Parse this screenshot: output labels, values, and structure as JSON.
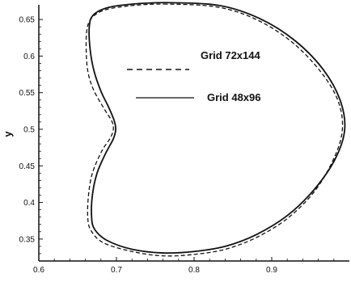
{
  "chart_data": {
    "type": "line",
    "xlabel": "",
    "ylabel": "y",
    "xlim": [
      0.6,
      1.0
    ],
    "ylim": [
      0.32,
      0.67
    ],
    "x_ticks": [
      0.6,
      0.7,
      0.8,
      0.9
    ],
    "x_tick_labels": [
      "0.6",
      "0.7",
      "0.8",
      "0.9"
    ],
    "y_ticks": [
      0.35,
      0.4,
      0.45,
      0.5,
      0.55,
      0.6,
      0.65
    ],
    "y_tick_labels": [
      "0.35",
      "0.4",
      "0.45",
      "0.5",
      "0.55",
      "0.6",
      "0.65"
    ],
    "grid": false,
    "legend_position": "top-right",
    "series": [
      {
        "name": "Grid 72x144",
        "style": "dashed",
        "color": "#111111",
        "points": [
          [
            0.765,
            0.671
          ],
          [
            0.72,
            0.669
          ],
          [
            0.685,
            0.663
          ],
          [
            0.668,
            0.652
          ],
          [
            0.662,
            0.636
          ],
          [
            0.661,
            0.61
          ],
          [
            0.663,
            0.58
          ],
          [
            0.67,
            0.555
          ],
          [
            0.683,
            0.53
          ],
          [
            0.694,
            0.511
          ],
          [
            0.696,
            0.5
          ],
          [
            0.692,
            0.488
          ],
          [
            0.681,
            0.47
          ],
          [
            0.669,
            0.44
          ],
          [
            0.664,
            0.41
          ],
          [
            0.663,
            0.38
          ],
          [
            0.667,
            0.362
          ],
          [
            0.683,
            0.345
          ],
          [
            0.72,
            0.333
          ],
          [
            0.76,
            0.327
          ],
          [
            0.8,
            0.329
          ],
          [
            0.84,
            0.336
          ],
          [
            0.88,
            0.352
          ],
          [
            0.92,
            0.378
          ],
          [
            0.955,
            0.415
          ],
          [
            0.98,
            0.46
          ],
          [
            0.991,
            0.5
          ],
          [
            0.985,
            0.54
          ],
          [
            0.962,
            0.58
          ],
          [
            0.925,
            0.62
          ],
          [
            0.88,
            0.65
          ],
          [
            0.83,
            0.667
          ],
          [
            0.765,
            0.671
          ]
        ]
      },
      {
        "name": "Grid 48x96",
        "style": "solid",
        "color": "#111111",
        "points": [
          [
            0.765,
            0.673
          ],
          [
            0.72,
            0.671
          ],
          [
            0.688,
            0.666
          ],
          [
            0.67,
            0.656
          ],
          [
            0.665,
            0.64
          ],
          [
            0.666,
            0.61
          ],
          [
            0.671,
            0.58
          ],
          [
            0.68,
            0.552
          ],
          [
            0.69,
            0.53
          ],
          [
            0.697,
            0.512
          ],
          [
            0.699,
            0.5
          ],
          [
            0.696,
            0.487
          ],
          [
            0.686,
            0.467
          ],
          [
            0.675,
            0.44
          ],
          [
            0.669,
            0.41
          ],
          [
            0.668,
            0.38
          ],
          [
            0.672,
            0.363
          ],
          [
            0.688,
            0.348
          ],
          [
            0.72,
            0.336
          ],
          [
            0.76,
            0.331
          ],
          [
            0.8,
            0.333
          ],
          [
            0.84,
            0.34
          ],
          [
            0.88,
            0.356
          ],
          [
            0.92,
            0.382
          ],
          [
            0.955,
            0.418
          ],
          [
            0.982,
            0.46
          ],
          [
            0.994,
            0.5
          ],
          [
            0.988,
            0.54
          ],
          [
            0.966,
            0.582
          ],
          [
            0.93,
            0.621
          ],
          [
            0.885,
            0.651
          ],
          [
            0.833,
            0.669
          ],
          [
            0.765,
            0.673
          ]
        ]
      }
    ]
  }
}
